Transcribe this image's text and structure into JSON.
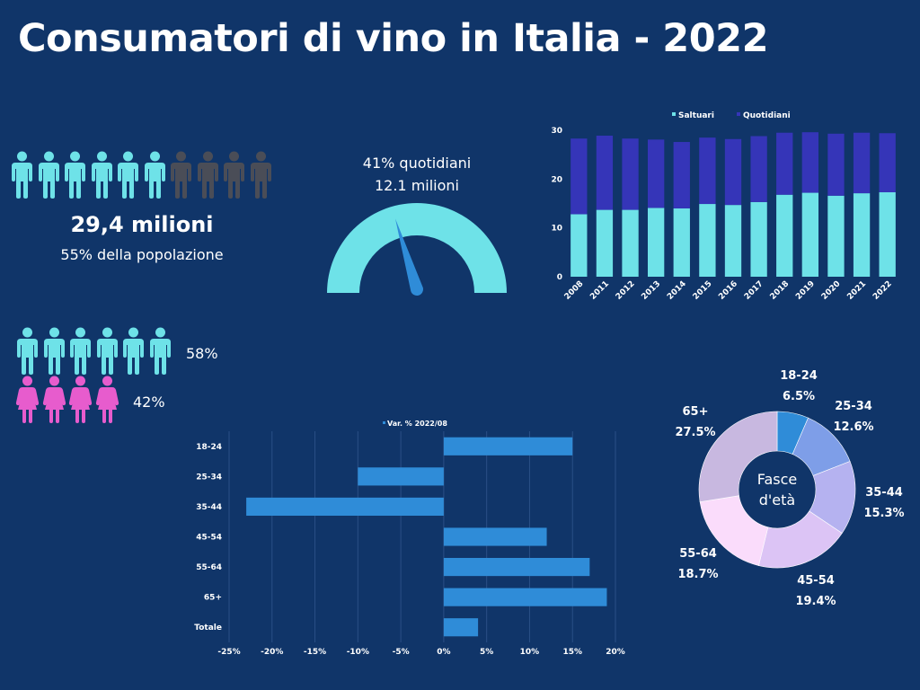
{
  "title": "Consumatori di vino in Italia - 2022",
  "colors": {
    "background": "#103569",
    "teal": "#6ee2e8",
    "grey_person": "#4a4d57",
    "pink": "#e75ccd",
    "dark_blue_series": "#3535b8",
    "bar_blue": "#2f8cd8"
  },
  "summary": {
    "total": "29,4 milioni",
    "share": "55% della popolazione",
    "people_filled": 6,
    "people_total": 10
  },
  "gauge": {
    "line1": "41% quotidiani",
    "line2": "12.1 milioni",
    "value_pct": 41
  },
  "gender": {
    "male_pct": "58%",
    "female_pct": "42%",
    "male_icons": 6,
    "female_icons": 4
  },
  "chart_data": [
    {
      "type": "bar",
      "stacked": true,
      "legend": [
        "Saltuari",
        "Quotidiani"
      ],
      "legend_position": "top",
      "categories": [
        "2008",
        "2011",
        "2012",
        "2013",
        "2014",
        "2015",
        "2016",
        "2017",
        "2018",
        "2019",
        "2020",
        "2021",
        "2022"
      ],
      "series": [
        {
          "name": "Saltuari",
          "color": "#6ee2e8",
          "values": [
            12.8,
            13.7,
            13.7,
            14.1,
            14.0,
            14.9,
            14.7,
            15.3,
            16.8,
            17.2,
            16.6,
            17.1,
            17.3
          ]
        },
        {
          "name": "Quotidiani",
          "color": "#3535b8",
          "values": [
            15.5,
            15.2,
            14.6,
            14.0,
            13.6,
            13.6,
            13.5,
            13.5,
            12.7,
            12.4,
            12.7,
            12.4,
            12.1
          ]
        }
      ],
      "yticks": [
        0,
        10,
        20,
        30
      ],
      "ylim": [
        0,
        30
      ],
      "grid": false
    },
    {
      "type": "bar",
      "orientation": "horizontal",
      "legend": [
        "Var. % 2022/08"
      ],
      "legend_position": "top",
      "categories": [
        "18-24",
        "25-34",
        "35-44",
        "45-54",
        "55-64",
        "65+",
        "Totale"
      ],
      "series": [
        {
          "name": "Var. % 2022/08",
          "color": "#2f8cd8",
          "values": [
            15,
            -10,
            -23,
            12,
            17,
            19,
            4
          ]
        }
      ],
      "xticks": [
        "-25%",
        "-20%",
        "-15%",
        "-10%",
        "-5%",
        "0%",
        "5%",
        "10%",
        "15%",
        "20%"
      ],
      "xlim": [
        -25,
        20
      ],
      "grid": true
    },
    {
      "type": "pie",
      "donut": true,
      "center_label_line1": "Fasce",
      "center_label_line2": "d'età",
      "slices": [
        {
          "label": "18-24",
          "value": 6.5,
          "text": "6.5%",
          "color": "#2f8cd8"
        },
        {
          "label": "25-34",
          "value": 12.6,
          "text": "12.6%",
          "color": "#7e9ee8"
        },
        {
          "label": "35-44",
          "value": 15.3,
          "text": "15.3%",
          "color": "#b5b2f0"
        },
        {
          "label": "45-54",
          "value": 19.4,
          "text": "19.4%",
          "color": "#dcc4f5"
        },
        {
          "label": "55-64",
          "value": 18.7,
          "text": "18.7%",
          "color": "#fadcfb"
        },
        {
          "label": "65+",
          "value": 27.5,
          "text": "27.5%",
          "color": "#c8b8e0"
        }
      ]
    }
  ]
}
